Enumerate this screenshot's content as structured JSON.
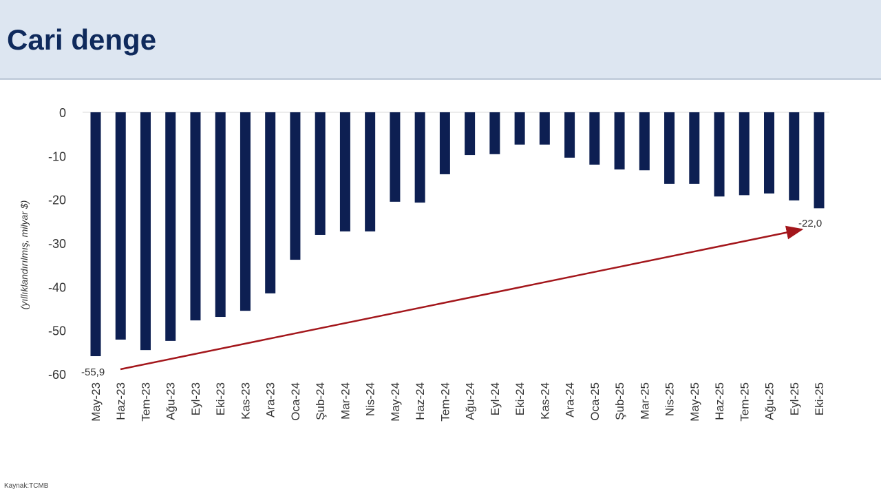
{
  "header": {
    "title": "Cari denge"
  },
  "source": "Kaynak:TCMB",
  "chart_data": {
    "type": "bar",
    "title": "Cari denge",
    "ylabel": "(yıllıklandırılmış, milyar $)",
    "xlabel": "",
    "ylim": [
      -60,
      0
    ],
    "yticks": [
      0,
      -10,
      -20,
      -30,
      -40,
      -50,
      -60
    ],
    "grid": false,
    "color": "#0d1f52",
    "arrow_color": "#a3161b",
    "categories": [
      "May-23",
      "Haz-23",
      "Tem-23",
      "Ağu-23",
      "Eyl-23",
      "Eki-23",
      "Kas-23",
      "Ara-23",
      "Oca-24",
      "Şub-24",
      "Mar-24",
      "Nis-24",
      "May-24",
      "Haz-24",
      "Tem-24",
      "Ağu-24",
      "Eyl-24",
      "Eki-24",
      "Kas-24",
      "Ara-24",
      "Oca-25",
      "Şub-25",
      "Mar-25",
      "Nis-25",
      "May-25",
      "Haz-25",
      "Tem-25",
      "Ağu-25",
      "Eyl-25",
      "Eki-25"
    ],
    "values": [
      -55.9,
      -52.1,
      -54.5,
      -52.4,
      -47.7,
      -46.9,
      -45.5,
      -41.5,
      -33.8,
      -28.1,
      -27.3,
      -27.3,
      -20.5,
      -20.7,
      -14.2,
      -9.8,
      -9.6,
      -7.4,
      -7.4,
      -10.4,
      -12.0,
      -13.1,
      -13.3,
      -16.4,
      -16.4,
      -19.3,
      -19.0,
      -18.6,
      -20.2,
      -22.0
    ],
    "annotations": [
      {
        "category": "May-23",
        "label": "-55,9"
      },
      {
        "category": "Eki-25",
        "label": "-22,0"
      }
    ]
  }
}
